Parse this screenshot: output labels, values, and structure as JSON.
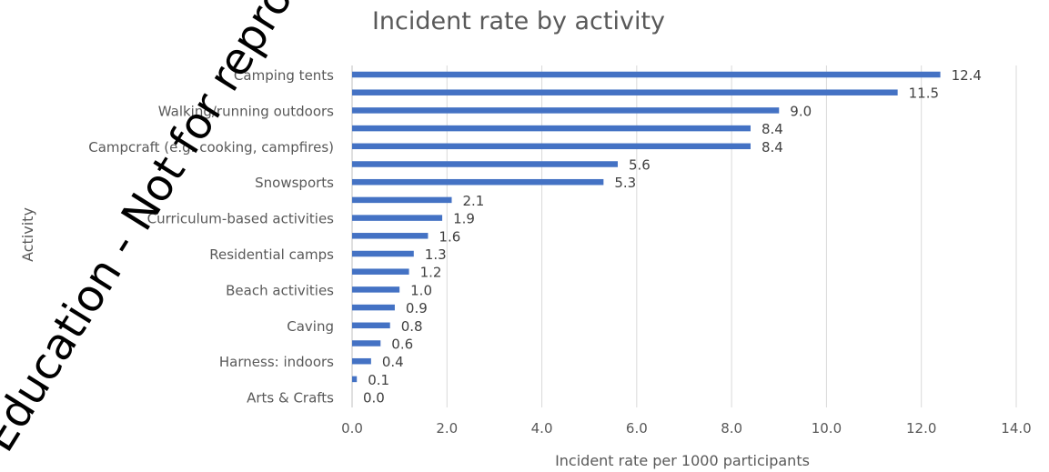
{
  "chart_data": {
    "type": "bar",
    "orientation": "horizontal",
    "title": "Incident rate by activity",
    "xlabel": "Incident rate per 1000 participants",
    "ylabel": "Activity",
    "xlim": [
      0,
      14
    ],
    "x_ticks": [
      "0.0",
      "2.0",
      "4.0",
      "6.0",
      "8.0",
      "10.0",
      "12.0",
      "14.0"
    ],
    "grid": true,
    "bar_color": "#4472c4",
    "categories": [
      "Camping tents",
      "",
      "Walking/running outdoors",
      "",
      "Campcraft (e.g. cooking, campfires)",
      "",
      "Snowsports",
      "",
      "Curriculum-based activities",
      "",
      "Residential camps",
      "",
      "Beach activities",
      "",
      "Caving",
      "",
      "Harness: indoors",
      "",
      "Arts & Crafts"
    ],
    "values": [
      12.4,
      11.5,
      9.0,
      8.4,
      8.4,
      5.6,
      5.3,
      2.1,
      1.9,
      1.6,
      1.3,
      1.2,
      1.0,
      0.9,
      0.8,
      0.6,
      0.4,
      0.1,
      0.0
    ],
    "value_labels": [
      "12.4",
      "11.5",
      "9.0",
      "8.4",
      "8.4",
      "5.6",
      "5.3",
      "2.1",
      "1.9",
      "1.6",
      "1.3",
      "1.2",
      "1.0",
      "0.9",
      "0.8",
      "0.6",
      "0.4",
      "0.1",
      "0.0"
    ]
  },
  "watermark": "Education - Not for reproduction"
}
